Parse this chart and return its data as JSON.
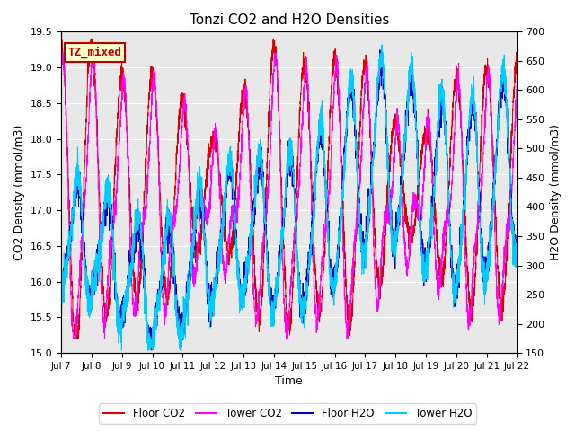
{
  "title": "Tonzi CO2 and H2O Densities",
  "xlabel": "Time",
  "ylabel_left": "CO2 Density (mmol/m3)",
  "ylabel_right": "H2O Density (mmol/m3)",
  "ylim_left": [
    15.0,
    19.5
  ],
  "ylim_right": [
    150,
    700
  ],
  "yticks_left": [
    15.0,
    15.5,
    16.0,
    16.5,
    17.0,
    17.5,
    18.0,
    18.5,
    19.0,
    19.5
  ],
  "yticks_right": [
    150,
    200,
    250,
    300,
    350,
    400,
    450,
    500,
    550,
    600,
    650,
    700
  ],
  "xtick_labels": [
    "Jul 7",
    "Jul 8",
    "Jul 9",
    "Jul 10",
    "Jul 11",
    "Jul 12",
    "Jul 13",
    "Jul 14",
    "Jul 15",
    "Jul 16",
    "Jul 17",
    "Jul 18",
    "Jul 19",
    "Jul 20",
    "Jul 21",
    "Jul 22"
  ],
  "colors": {
    "floor_co2": "#dd0000",
    "tower_co2": "#ff00ff",
    "floor_h2o": "#0000bb",
    "tower_h2o": "#00ccff"
  },
  "legend_labels": [
    "Floor CO2",
    "Tower CO2",
    "Floor H2O",
    "Tower H2O"
  ],
  "annotation_text": "TZ_mixed",
  "annotation_color": "#bb0000",
  "annotation_bg": "#ffffcc",
  "annotation_border": "#bb0000",
  "plot_bg": "#e8e8e8",
  "n_points": 3600,
  "seed": 42,
  "figsize": [
    6.4,
    4.8
  ],
  "dpi": 100
}
